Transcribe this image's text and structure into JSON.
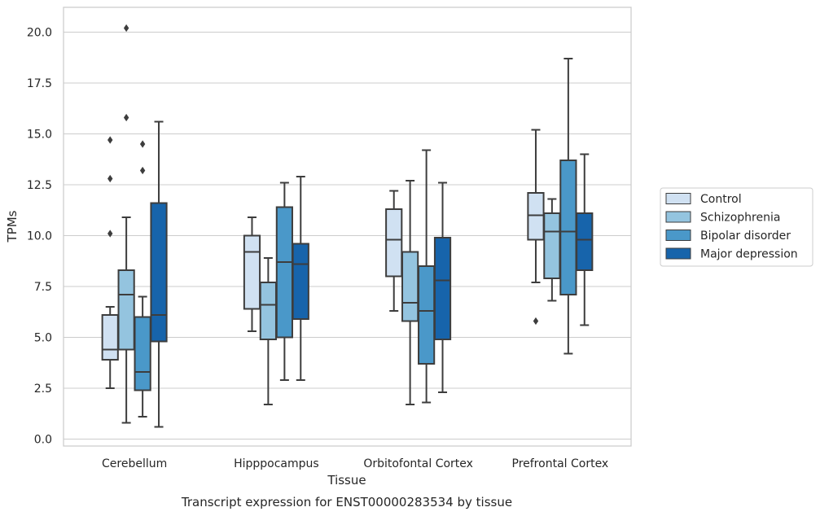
{
  "caption": "Transcript expression for ENST00000283534 by tissue",
  "chart_data": {
    "type": "boxplot",
    "xlabel": "Tissue",
    "ylabel": "TPMs",
    "ylim": [
      -0.3,
      21.2
    ],
    "yticks": [
      0.0,
      2.5,
      5.0,
      7.5,
      10.0,
      12.5,
      15.0,
      17.5,
      20.0
    ],
    "ytick_labels": [
      "0.0",
      "2.5",
      "5.0",
      "7.5",
      "10.0",
      "12.5",
      "15.0",
      "17.5",
      "20.0"
    ],
    "grid": "horizontal",
    "legend_position": "right",
    "categories": [
      "Cerebellum",
      "Hipppocampus",
      "Orbitofontal Cortex",
      "Prefrontal Cortex"
    ],
    "series": [
      {
        "name": "Control",
        "color": "#d0e1f2",
        "boxes": [
          {
            "whislo": 2.5,
            "q1": 3.9,
            "med": 4.4,
            "q3": 6.1,
            "whishi": 6.5,
            "fliers": [
              14.7,
              12.8,
              10.1
            ]
          },
          {
            "whislo": 5.3,
            "q1": 6.4,
            "med": 9.2,
            "q3": 10.0,
            "whishi": 10.9,
            "fliers": []
          },
          {
            "whislo": 6.3,
            "q1": 8.0,
            "med": 9.8,
            "q3": 11.3,
            "whishi": 12.2,
            "fliers": []
          },
          {
            "whislo": 7.7,
            "q1": 9.8,
            "med": 11.0,
            "q3": 12.1,
            "whishi": 15.2,
            "fliers": [
              5.8
            ]
          }
        ]
      },
      {
        "name": "Schizophrenia",
        "color": "#94c4df",
        "boxes": [
          {
            "whislo": 0.8,
            "q1": 4.4,
            "med": 7.1,
            "q3": 8.3,
            "whishi": 10.9,
            "fliers": [
              20.2,
              15.8
            ]
          },
          {
            "whislo": 1.7,
            "q1": 4.9,
            "med": 6.6,
            "q3": 7.7,
            "whishi": 8.9,
            "fliers": []
          },
          {
            "whislo": 1.7,
            "q1": 5.8,
            "med": 6.7,
            "q3": 9.2,
            "whishi": 12.7,
            "fliers": []
          },
          {
            "whislo": 6.8,
            "q1": 7.9,
            "med": 10.2,
            "q3": 11.1,
            "whishi": 11.8,
            "fliers": []
          }
        ]
      },
      {
        "name": "Bipolar disorder",
        "color": "#4a98c9",
        "boxes": [
          {
            "whislo": 1.1,
            "q1": 2.4,
            "med": 3.3,
            "q3": 6.0,
            "whishi": 7.0,
            "fliers": [
              14.5,
              13.2
            ]
          },
          {
            "whislo": 2.9,
            "q1": 5.0,
            "med": 8.7,
            "q3": 11.4,
            "whishi": 12.6,
            "fliers": []
          },
          {
            "whislo": 1.8,
            "q1": 3.7,
            "med": 6.3,
            "q3": 8.5,
            "whishi": 14.2,
            "fliers": []
          },
          {
            "whislo": 4.2,
            "q1": 7.1,
            "med": 10.2,
            "q3": 13.7,
            "whishi": 18.7,
            "fliers": []
          }
        ]
      },
      {
        "name": "Major depression",
        "color": "#1764ab",
        "boxes": [
          {
            "whislo": 0.6,
            "q1": 4.8,
            "med": 6.1,
            "q3": 11.6,
            "whishi": 15.6,
            "fliers": []
          },
          {
            "whislo": 2.9,
            "q1": 5.9,
            "med": 8.6,
            "q3": 9.6,
            "whishi": 12.9,
            "fliers": []
          },
          {
            "whislo": 2.3,
            "q1": 4.9,
            "med": 7.8,
            "q3": 9.9,
            "whishi": 12.6,
            "fliers": []
          },
          {
            "whislo": 5.6,
            "q1": 8.3,
            "med": 9.8,
            "q3": 11.1,
            "whishi": 14.0,
            "fliers": []
          }
        ]
      }
    ]
  }
}
